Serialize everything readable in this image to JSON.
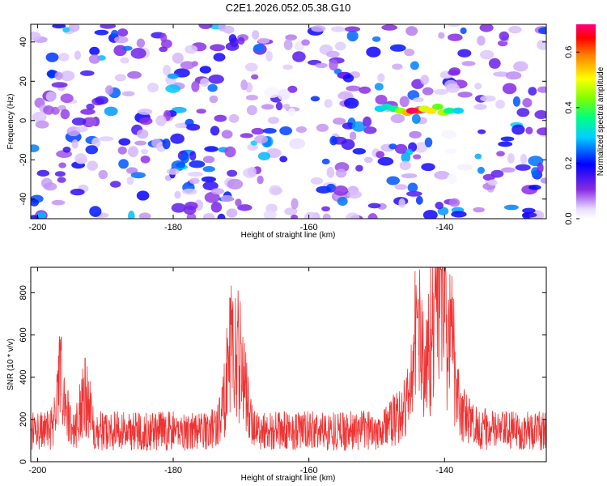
{
  "title": "C2E1.2026.052.05.38.G10",
  "chart_data": [
    {
      "type": "heatmap",
      "xlabel": "Height of straight line (km)",
      "ylabel": "Frequency (Hz)",
      "xlim": [
        -201,
        -125
      ],
      "ylim": [
        -50,
        49
      ],
      "xticks": [
        -200,
        -180,
        -160,
        -140
      ],
      "yticks": [
        -40,
        -20,
        0,
        20,
        40
      ],
      "colorbar": {
        "label": "Normalized spectral amplitude",
        "range": [
          0,
          0.7
        ],
        "ticks": [
          0.0,
          0.2,
          0.4,
          0.6
        ]
      },
      "colors": {
        "low": "#ffffff",
        "mid": "#7a00ff",
        "high": "#ff0000"
      },
      "peak": {
        "x": -144.5,
        "y": 5,
        "value": 0.7,
        "note": "narrow band near 5 Hz between -150 and -138 km"
      }
    },
    {
      "type": "line",
      "xlabel": "Height of straight line (km)",
      "ylabel": "SNR (10 * v/v)",
      "xlim": [
        -201,
        -125
      ],
      "ylim": [
        0,
        920
      ],
      "xticks": [
        -200,
        -180,
        -160,
        -140
      ],
      "yticks": [
        0,
        200,
        400,
        600,
        800
      ],
      "color": "#ee3333",
      "baseline": 150,
      "peaks": [
        {
          "x": -171.5,
          "y": 650
        },
        {
          "x": -170.0,
          "y": 560
        },
        {
          "x": -144.0,
          "y": 680
        },
        {
          "x": -141.5,
          "y": 780
        },
        {
          "x": -140.5,
          "y": 910
        },
        {
          "x": -139.0,
          "y": 640
        },
        {
          "x": -196.5,
          "y": 590
        },
        {
          "x": -193.0,
          "y": 490
        }
      ]
    }
  ]
}
